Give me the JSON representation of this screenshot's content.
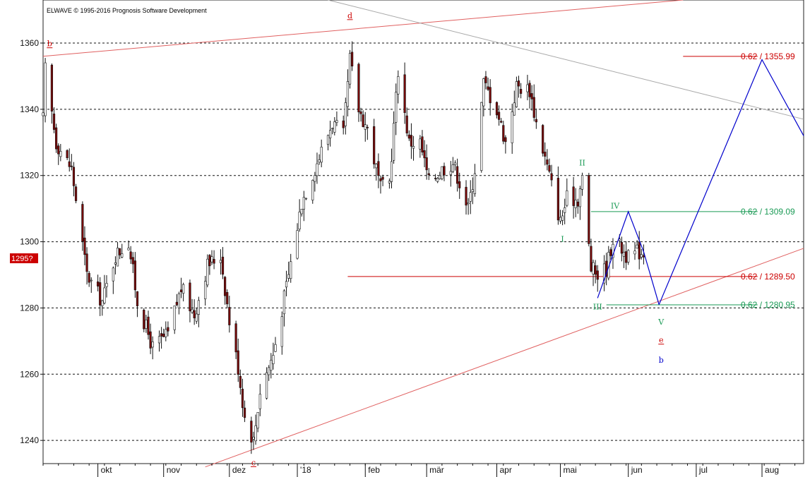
{
  "copyright": "ELWAVE © 1995-2016 Prognosis Software Development",
  "current_price_badge": {
    "text": "1295?",
    "value": 1295,
    "color": "#cc0000"
  },
  "chart_data": {
    "type": "candlestick",
    "title": "",
    "xlabel": "",
    "ylabel": "",
    "ylim": [
      1233,
      1373
    ],
    "grid": "horizontal-dashed",
    "y_ticks": [
      1240,
      1260,
      1280,
      1300,
      1320,
      1340,
      1360
    ],
    "y_tick_labels": [
      "1240",
      "1260",
      "1280",
      "1300",
      "1320",
      "1340",
      "1360"
    ],
    "x_range": [
      "2017-09-07",
      "2018-08-20"
    ],
    "x_ticks": [
      {
        "date": "2017-10-02",
        "label": "okt"
      },
      {
        "date": "2017-11-01",
        "label": "nov"
      },
      {
        "date": "2017-12-01",
        "label": "dez"
      },
      {
        "date": "2018-01-01",
        "label": "'18"
      },
      {
        "date": "2018-02-01",
        "label": "feb"
      },
      {
        "date": "2018-03-01",
        "label": "mär"
      },
      {
        "date": "2018-04-02",
        "label": "apr"
      },
      {
        "date": "2018-05-01",
        "label": "mai"
      },
      {
        "date": "2018-06-01",
        "label": "jun"
      },
      {
        "date": "2018-07-02",
        "label": "jul"
      },
      {
        "date": "2018-08-01",
        "label": "aug"
      }
    ],
    "price_anchors": [
      [
        "2017-09-07",
        1337
      ],
      [
        "2017-09-08",
        1352
      ],
      [
        "2017-09-13",
        1330
      ],
      [
        "2017-09-20",
        1322
      ],
      [
        "2017-09-27",
        1290
      ],
      [
        "2017-10-04",
        1282
      ],
      [
        "2017-10-10",
        1296
      ],
      [
        "2017-10-16",
        1300
      ],
      [
        "2017-10-20",
        1282
      ],
      [
        "2017-10-27",
        1268
      ],
      [
        "2017-11-03",
        1272
      ],
      [
        "2017-11-09",
        1286
      ],
      [
        "2017-11-15",
        1278
      ],
      [
        "2017-11-21",
        1293
      ],
      [
        "2017-11-27",
        1296
      ],
      [
        "2017-12-01",
        1276
      ],
      [
        "2017-12-05",
        1262
      ],
      [
        "2017-12-08",
        1247
      ],
      [
        "2017-12-12",
        1240
      ],
      [
        "2017-12-15",
        1255
      ],
      [
        "2017-12-21",
        1266
      ],
      [
        "2017-12-28",
        1290
      ],
      [
        "2018-01-03",
        1312
      ],
      [
        "2018-01-10",
        1324
      ],
      [
        "2018-01-17",
        1336
      ],
      [
        "2018-01-22",
        1332
      ],
      [
        "2018-01-25",
        1355
      ],
      [
        "2018-01-29",
        1340
      ],
      [
        "2018-02-02",
        1334
      ],
      [
        "2018-02-08",
        1316
      ],
      [
        "2018-02-12",
        1318
      ],
      [
        "2018-02-16",
        1352
      ],
      [
        "2018-02-21",
        1330
      ],
      [
        "2018-02-26",
        1330
      ],
      [
        "2018-03-02",
        1318
      ],
      [
        "2018-03-08",
        1322
      ],
      [
        "2018-03-13",
        1324
      ],
      [
        "2018-03-20",
        1310
      ],
      [
        "2018-03-23",
        1322
      ],
      [
        "2018-03-27",
        1348
      ],
      [
        "2018-04-02",
        1340
      ],
      [
        "2018-04-06",
        1330
      ],
      [
        "2018-04-11",
        1347
      ],
      [
        "2018-04-17",
        1346
      ],
      [
        "2018-04-20",
        1336
      ],
      [
        "2018-04-26",
        1320
      ],
      [
        "2018-05-01",
        1306
      ],
      [
        "2018-05-04",
        1313
      ],
      [
        "2018-05-09",
        1313
      ],
      [
        "2018-05-11",
        1319
      ],
      [
        "2018-05-15",
        1292
      ],
      [
        "2018-05-18",
        1290
      ],
      [
        "2018-05-22",
        1292
      ],
      [
        "2018-05-25",
        1301
      ],
      [
        "2018-05-29",
        1298
      ],
      [
        "2018-06-01",
        1295
      ],
      [
        "2018-06-05",
        1297
      ],
      [
        "2018-06-08",
        1297
      ]
    ],
    "projections": [
      {
        "name": "",
        "color": "#0000cc",
        "points": [
          [
            "2018-05-18",
            1283
          ],
          [
            "2018-06-01",
            1309.1
          ],
          [
            "2018-06-08",
            1297
          ],
          [
            "2018-06-15",
            1281
          ]
        ]
      },
      {
        "name": "",
        "color": "#0000cc",
        "points": [
          [
            "2018-06-15",
            1281
          ],
          [
            "2018-08-01",
            1355
          ],
          [
            "2018-08-20",
            1332
          ]
        ]
      }
    ],
    "trendlines": [
      {
        "color": "#e06060",
        "points": [
          [
            "2017-09-07",
            1356
          ],
          [
            "2018-06-26",
            1373
          ]
        ]
      },
      {
        "color": "#e06060",
        "points": [
          [
            "2017-11-20",
            1232
          ],
          [
            "2018-08-20",
            1298
          ]
        ]
      },
      {
        "color": "#a8a8a8",
        "points": [
          [
            "2018-01-15",
            1373
          ],
          [
            "2018-08-20",
            1337
          ]
        ]
      }
    ],
    "fib_levels": [
      {
        "label": "0.62 / 1355.99",
        "value": 1355.99,
        "color": "#cc0000",
        "from": "2018-06-26",
        "to": "2018-07-30"
      },
      {
        "label": "0.62 / 1309.09",
        "value": 1309.09,
        "color": "#1a9a55",
        "from": "2018-05-15",
        "to": "2018-07-30"
      },
      {
        "label": "0.62 / 1289.50",
        "value": 1289.5,
        "color": "#cc0000",
        "from": "2018-01-24",
        "to": "2018-07-30"
      },
      {
        "label": "0.62 / 1280.95",
        "value": 1280.95,
        "color": "#1a9a55",
        "from": "2018-05-22",
        "to": "2018-07-30"
      }
    ],
    "wave_labels": [
      {
        "text": "b",
        "date": "2017-09-10",
        "value": 1359,
        "color": "#cc0000",
        "underline": true
      },
      {
        "text": "d",
        "date": "2018-01-25",
        "value": 1367.5,
        "color": "#cc0000",
        "underline": true
      },
      {
        "text": "c",
        "date": "2017-12-12",
        "value": 1232.5,
        "color": "#cc0000",
        "underline": true
      },
      {
        "text": "II",
        "date": "2018-05-11",
        "value": 1323,
        "color": "#1a9a55",
        "underline": false
      },
      {
        "text": "I",
        "date": "2018-05-02",
        "value": 1300,
        "color": "#1a9a55",
        "underline": false
      },
      {
        "text": "III",
        "date": "2018-05-18",
        "value": 1279.6,
        "color": "#1a9a55",
        "underline": false
      },
      {
        "text": "IV",
        "date": "2018-05-26",
        "value": 1310,
        "color": "#1a9a55",
        "underline": false
      },
      {
        "text": "V",
        "date": "2018-06-16",
        "value": 1275,
        "color": "#1a9a55",
        "underline": false
      },
      {
        "text": "e",
        "date": "2018-06-16",
        "value": 1269.5,
        "color": "#cc0000",
        "underline": true
      },
      {
        "text": "b",
        "date": "2018-06-16",
        "value": 1263.5,
        "color": "#0000cc",
        "underline": false
      }
    ]
  }
}
